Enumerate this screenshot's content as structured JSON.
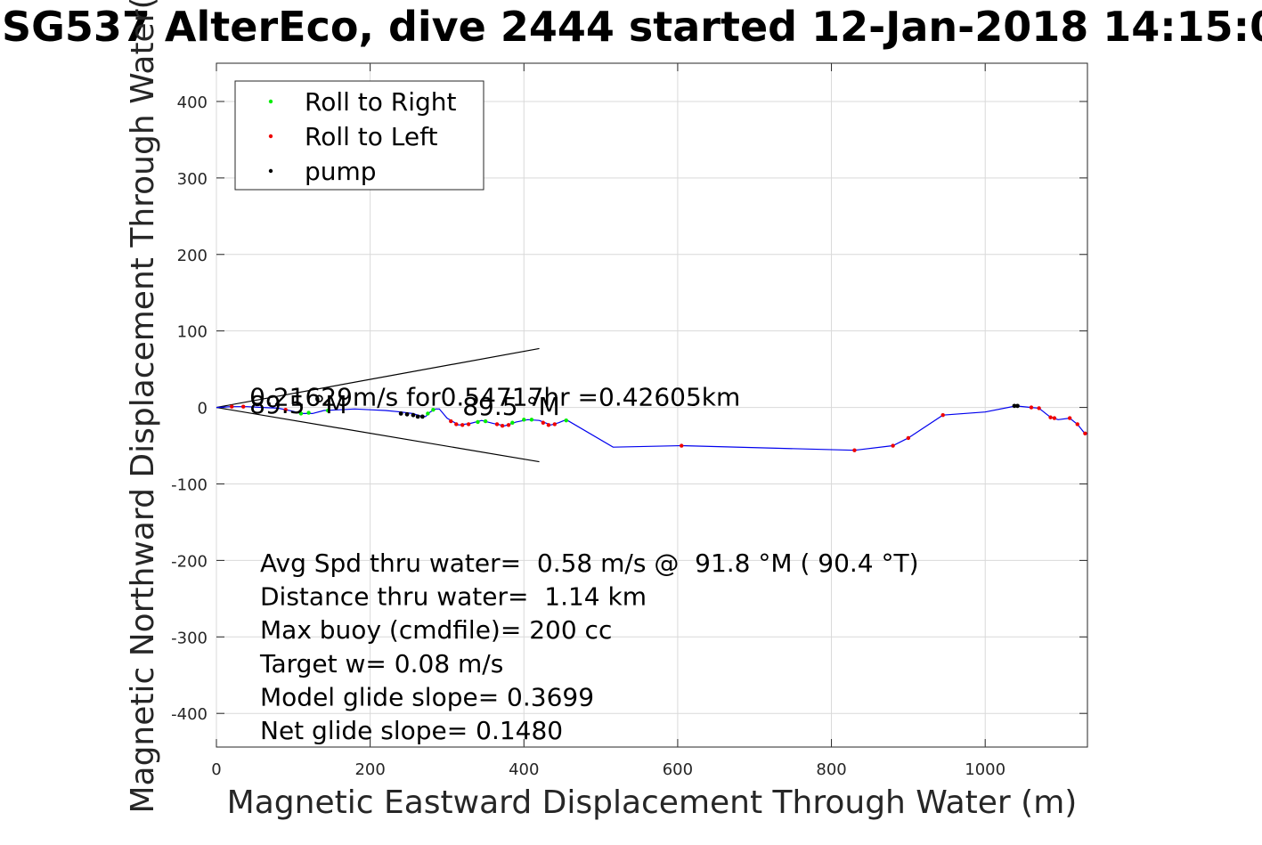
{
  "chart_data": {
    "type": "line",
    "title": "SG537 AlterEco, dive 2444 started 12-Jan-2018 14:15:0",
    "xlabel": "Magnetic Eastward Displacement Through Water (m)",
    "ylabel": "Magnetic Northward Displacement Through Water(",
    "xlim": [
      0,
      1133
    ],
    "ylim": [
      -444,
      450
    ],
    "xticks": [
      0,
      200,
      400,
      600,
      800,
      1000
    ],
    "yticks": [
      400,
      300,
      200,
      100,
      0,
      -100,
      -200,
      -300,
      -400
    ],
    "grid": true,
    "legend_position": "top-left",
    "legend": [
      {
        "label": "Roll to Right",
        "color": "#00ee00"
      },
      {
        "label": "Roll to Left",
        "color": "#ee0000"
      },
      {
        "label": "pump",
        "color": "#000000"
      }
    ],
    "track_color": "#0000ee",
    "track": [
      [
        0,
        0
      ],
      [
        20,
        1
      ],
      [
        40,
        1
      ],
      [
        60,
        0
      ],
      [
        80,
        -1
      ],
      [
        100,
        -5
      ],
      [
        110,
        -8
      ],
      [
        125,
        -8
      ],
      [
        140,
        -4
      ],
      [
        160,
        -3
      ],
      [
        180,
        -2
      ],
      [
        200,
        -3
      ],
      [
        220,
        -4
      ],
      [
        240,
        -6
      ],
      [
        255,
        -8
      ],
      [
        265,
        -11
      ],
      [
        272,
        -12
      ],
      [
        278,
        -6
      ],
      [
        285,
        -2
      ],
      [
        290,
        -2
      ],
      [
        300,
        -14
      ],
      [
        315,
        -23
      ],
      [
        330,
        -21
      ],
      [
        345,
        -17
      ],
      [
        360,
        -21
      ],
      [
        375,
        -24
      ],
      [
        390,
        -19
      ],
      [
        405,
        -16
      ],
      [
        420,
        -17
      ],
      [
        435,
        -23
      ],
      [
        445,
        -20
      ],
      [
        455,
        -16
      ],
      [
        516,
        -52
      ],
      [
        605,
        -50
      ],
      [
        830,
        -56
      ],
      [
        880,
        -50
      ],
      [
        900,
        -40
      ],
      [
        945,
        -10
      ],
      [
        1000,
        -6
      ],
      [
        1040,
        2
      ],
      [
        1060,
        0
      ],
      [
        1070,
        -1
      ],
      [
        1085,
        -13
      ],
      [
        1095,
        -16
      ],
      [
        1110,
        -14
      ],
      [
        1120,
        -22
      ],
      [
        1128,
        -32
      ],
      [
        1133,
        -35
      ]
    ],
    "roll_right": [
      [
        110,
        -8
      ],
      [
        120,
        -7
      ],
      [
        145,
        -4
      ],
      [
        275,
        -8
      ],
      [
        282,
        -3
      ],
      [
        340,
        -19
      ],
      [
        350,
        -18
      ],
      [
        385,
        -20
      ],
      [
        400,
        -16
      ],
      [
        410,
        -16
      ],
      [
        455,
        -17
      ]
    ],
    "roll_left": [
      [
        20,
        1
      ],
      [
        35,
        1
      ],
      [
        90,
        -3
      ],
      [
        305,
        -18
      ],
      [
        312,
        -22
      ],
      [
        320,
        -23
      ],
      [
        328,
        -22
      ],
      [
        365,
        -22
      ],
      [
        372,
        -24
      ],
      [
        380,
        -23
      ],
      [
        425,
        -20
      ],
      [
        432,
        -23
      ],
      [
        440,
        -22
      ],
      [
        605,
        -50
      ],
      [
        830,
        -56
      ],
      [
        880,
        -50
      ],
      [
        900,
        -40
      ],
      [
        945,
        -10
      ],
      [
        1060,
        0
      ],
      [
        1070,
        -1
      ],
      [
        1085,
        -13
      ],
      [
        1090,
        -14
      ],
      [
        1110,
        -14
      ],
      [
        1120,
        -22
      ],
      [
        1130,
        -34
      ]
    ],
    "pump": [
      [
        240,
        -8
      ],
      [
        248,
        -9
      ],
      [
        256,
        -10
      ],
      [
        262,
        -12
      ],
      [
        268,
        -12
      ],
      [
        1038,
        2
      ],
      [
        1042,
        2
      ]
    ],
    "cone_lines": [
      [
        [
          0,
          0
        ],
        [
          420,
          77
        ]
      ],
      [
        [
          0,
          0
        ],
        [
          420,
          -71
        ]
      ]
    ],
    "annotations": [
      {
        "text": "0.21629m/s for0.54717hr =0.42605km",
        "x": 43,
        "y": 0
      },
      {
        "text": "89.5 °M",
        "x": 43,
        "y": -10
      },
      {
        "text": "89.5 °M",
        "x": 320,
        "y": -12
      }
    ],
    "stats_lines": [
      "Avg Spd thru water=  0.58 m/s @  91.8 °M ( 90.4 °T)",
      "Distance thru water=  1.14 km",
      "Max buoy (cmdfile)= 200 cc",
      "Target w= 0.08 m/s",
      "Model glide slope= 0.3699",
      "Net glide slope= 0.1480"
    ]
  }
}
